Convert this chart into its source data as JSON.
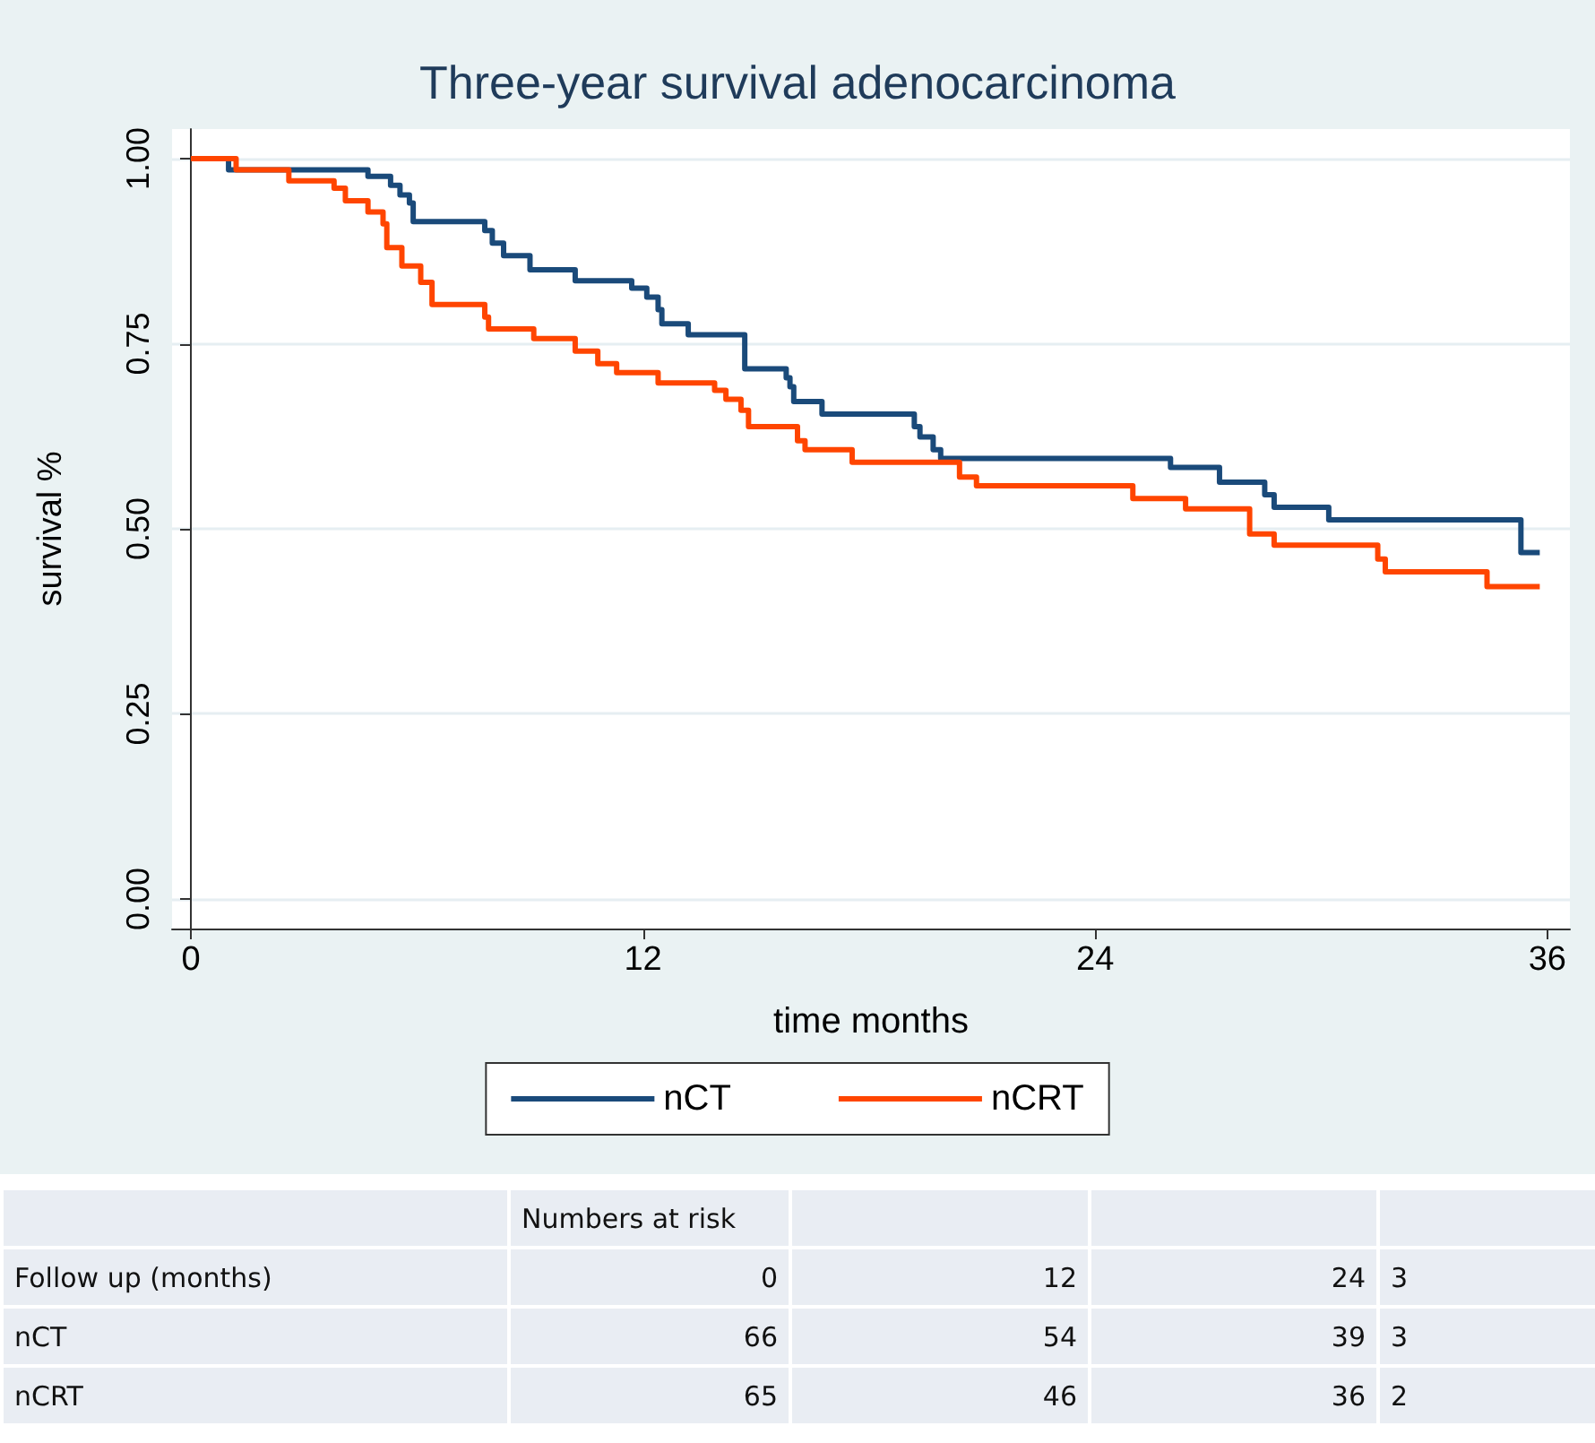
{
  "chart_data": {
    "type": "step",
    "title": "Three-year survival adenocarcinoma",
    "xlabel": "time months",
    "ylabel": "survival %",
    "xlim": [
      -0.5,
      36.6
    ],
    "xticks": [
      0,
      12,
      24,
      36
    ],
    "ylim": [
      -0.04,
      1.04
    ],
    "yticks": [
      {
        "value": 0,
        "label": "0.00"
      },
      {
        "value": 0.25,
        "label": "0.25"
      },
      {
        "value": 0.5,
        "label": "0.50"
      },
      {
        "value": 0.75,
        "label": "0.75"
      },
      {
        "value": 1,
        "label": "1.00"
      }
    ],
    "grid": "y",
    "legend": "bottom",
    "marker": "none",
    "line_style": "solid",
    "series": [
      {
        "name": "nCT",
        "color": "#1a4a7a",
        "x": [
          0,
          1.0,
          4.7,
          5.3,
          5.55,
          5.8,
          5.9,
          7.8,
          8.0,
          8.3,
          9.0,
          10.2,
          11.7,
          12.1,
          12.4,
          12.5,
          13.2,
          14.7,
          15.8,
          15.9,
          16.0,
          16.75,
          19.2,
          19.35,
          19.7,
          19.9,
          26.0,
          27.3,
          28.5,
          28.75,
          30.2,
          35.3,
          35.8
        ],
        "values": [
          1.0,
          0.985,
          0.976,
          0.964,
          0.951,
          0.94,
          0.915,
          0.903,
          0.886,
          0.869,
          0.85,
          0.835,
          0.825,
          0.813,
          0.796,
          0.777,
          0.762,
          0.716,
          0.704,
          0.692,
          0.672,
          0.655,
          0.638,
          0.624,
          0.607,
          0.595,
          0.583,
          0.563,
          0.546,
          0.529,
          0.512,
          0.468,
          0.468
        ]
      },
      {
        "name": "nCRT",
        "color": "#ff4500",
        "x": [
          0,
          1.2,
          2.6,
          3.8,
          4.1,
          4.7,
          5.1,
          5.2,
          5.6,
          6.1,
          6.4,
          7.8,
          7.9,
          9.1,
          10.2,
          10.8,
          11.3,
          12.4,
          13.9,
          14.2,
          14.6,
          14.8,
          16.1,
          16.3,
          17.55,
          20.4,
          20.85,
          25.0,
          26.4,
          28.1,
          28.75,
          31.5,
          31.7,
          34.4,
          35.8
        ],
        "values": [
          1.0,
          0.985,
          0.97,
          0.96,
          0.943,
          0.928,
          0.912,
          0.88,
          0.855,
          0.833,
          0.803,
          0.786,
          0.77,
          0.757,
          0.74,
          0.723,
          0.711,
          0.697,
          0.687,
          0.675,
          0.66,
          0.638,
          0.619,
          0.607,
          0.59,
          0.57,
          0.558,
          0.541,
          0.527,
          0.493,
          0.478,
          0.459,
          0.442,
          0.422,
          0.422
        ]
      }
    ],
    "annotations": [
      "Numbers at risk",
      "Follow up (months)",
      "0",
      "12",
      "24",
      "3",
      "nCT",
      "66",
      "54",
      "39",
      "3",
      "nCRT",
      "65",
      "46",
      "36",
      "2"
    ]
  }
}
